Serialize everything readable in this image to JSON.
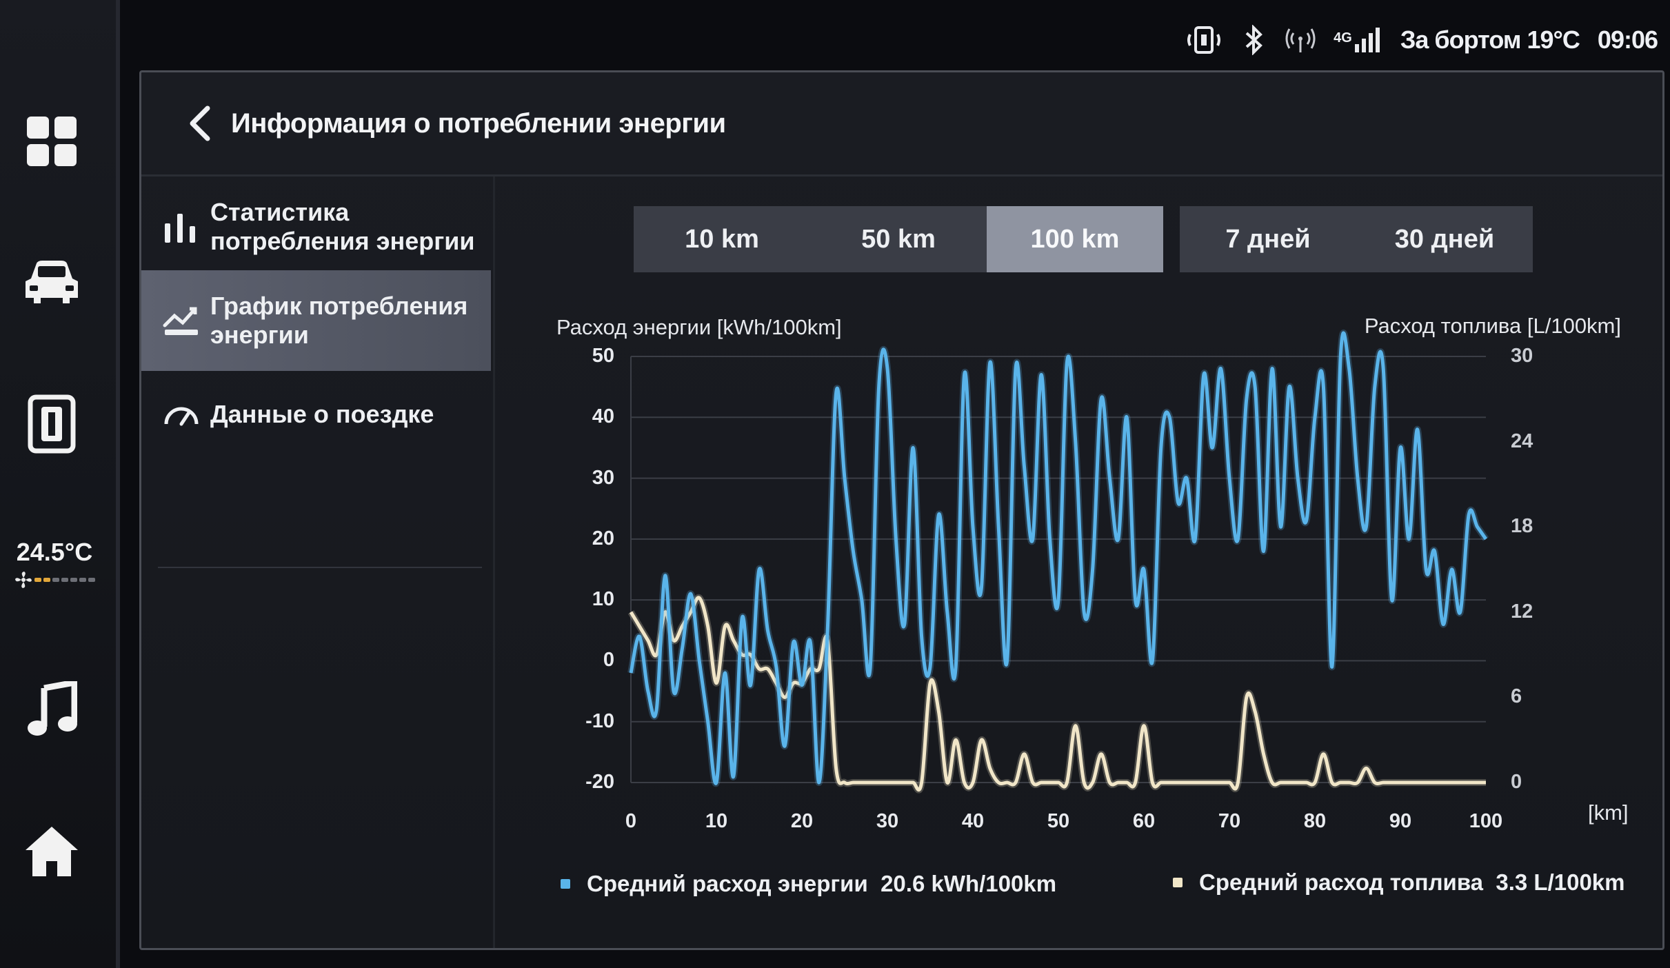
{
  "status": {
    "network": "4G",
    "outside_label": "За бортом",
    "outside_temp": "19°C",
    "time": "09:06"
  },
  "dock": {
    "cabin_temp": "24.5°C",
    "fan_level": 0.33
  },
  "header": {
    "title": "Информация о потреблении энергии"
  },
  "menu": {
    "items": [
      {
        "label": "Статистика потребления энергии",
        "active": false
      },
      {
        "label": "График потребления энергии",
        "active": true
      },
      {
        "label": "Данные о поездке",
        "active": false
      }
    ]
  },
  "tabs": {
    "distance": [
      "10 km",
      "50 km",
      "100 km"
    ],
    "time": [
      "7 дней",
      "30 дней"
    ],
    "selected": "100 km"
  },
  "chart": {
    "left_axis_title": "Расход энергии [kWh/100km]",
    "right_axis_title": "Расход топлива [L/100km]",
    "x_unit": "[km]",
    "legend_energy": "Средний расход энергии  20.6 kWh/100km",
    "legend_fuel": "Средний расход топлива  3.3 L/100km"
  },
  "colors": {
    "energy": "#5ab4ea",
    "fuel": "#f1e6c8",
    "accent_selected": "#8f94a1"
  },
  "chart_data": {
    "type": "line",
    "x_label": "[km]",
    "xlim": [
      0,
      100
    ],
    "x_ticks": [
      0,
      10,
      20,
      30,
      40,
      50,
      60,
      70,
      80,
      90,
      100
    ],
    "y_left_label": "Расход энергии [kWh/100km]",
    "ylim_left": [
      -20,
      50
    ],
    "y_left_ticks": [
      50,
      40,
      30,
      20,
      10,
      0,
      -10,
      -20
    ],
    "y_right_label": "Расход топлива [L/100km]",
    "ylim_right": [
      0,
      30
    ],
    "y_right_ticks": [
      30,
      24,
      18,
      12,
      6,
      0
    ],
    "grid": true,
    "legend_position": "bottom",
    "series": [
      {
        "name": "Средний расход энергии",
        "axis": "left",
        "points": [
          [
            0,
            -2
          ],
          [
            1,
            4
          ],
          [
            2,
            -5
          ],
          [
            3,
            -8
          ],
          [
            4,
            14
          ],
          [
            5,
            -5
          ],
          [
            6,
            2
          ],
          [
            7,
            11
          ],
          [
            8,
            0
          ],
          [
            9,
            -10
          ],
          [
            10,
            -20
          ],
          [
            11,
            -2
          ],
          [
            12,
            -19
          ],
          [
            13,
            7
          ],
          [
            14,
            -4
          ],
          [
            15,
            15
          ],
          [
            16,
            5
          ],
          [
            17,
            -1
          ],
          [
            18,
            -14
          ],
          [
            19,
            3
          ],
          [
            20,
            -4
          ],
          [
            21,
            3
          ],
          [
            22,
            -20
          ],
          [
            23,
            5
          ],
          [
            24,
            44
          ],
          [
            25,
            30
          ],
          [
            26,
            18
          ],
          [
            27,
            10
          ],
          [
            28,
            -1
          ],
          [
            29,
            45
          ],
          [
            30,
            48
          ],
          [
            31,
            20
          ],
          [
            32,
            6
          ],
          [
            33,
            35
          ],
          [
            34,
            4
          ],
          [
            35,
            -1
          ],
          [
            36,
            24
          ],
          [
            37,
            8
          ],
          [
            38,
            -1
          ],
          [
            39,
            47
          ],
          [
            40,
            22
          ],
          [
            41,
            12
          ],
          [
            42,
            49
          ],
          [
            43,
            22
          ],
          [
            44,
            0
          ],
          [
            45,
            48
          ],
          [
            46,
            32
          ],
          [
            47,
            20
          ],
          [
            48,
            47
          ],
          [
            49,
            20
          ],
          [
            50,
            10
          ],
          [
            51,
            49
          ],
          [
            52,
            36
          ],
          [
            53,
            8
          ],
          [
            54,
            15
          ],
          [
            55,
            43
          ],
          [
            56,
            30
          ],
          [
            57,
            20
          ],
          [
            58,
            40
          ],
          [
            59,
            10
          ],
          [
            60,
            15
          ],
          [
            61,
            0
          ],
          [
            62,
            35
          ],
          [
            63,
            40
          ],
          [
            64,
            26
          ],
          [
            65,
            30
          ],
          [
            66,
            20
          ],
          [
            67,
            47
          ],
          [
            68,
            35
          ],
          [
            69,
            48
          ],
          [
            70,
            30
          ],
          [
            71,
            20
          ],
          [
            72,
            43
          ],
          [
            73,
            45
          ],
          [
            74,
            18
          ],
          [
            75,
            48
          ],
          [
            76,
            22
          ],
          [
            77,
            45
          ],
          [
            78,
            30
          ],
          [
            79,
            23
          ],
          [
            80,
            40
          ],
          [
            81,
            45
          ],
          [
            82,
            -1
          ],
          [
            83,
            50
          ],
          [
            84,
            48
          ],
          [
            85,
            30
          ],
          [
            86,
            22
          ],
          [
            87,
            45
          ],
          [
            88,
            48
          ],
          [
            89,
            10
          ],
          [
            90,
            35
          ],
          [
            91,
            20
          ],
          [
            92,
            38
          ],
          [
            93,
            15
          ],
          [
            94,
            18
          ],
          [
            95,
            6
          ],
          [
            96,
            15
          ],
          [
            97,
            8
          ],
          [
            98,
            24
          ],
          [
            99,
            22
          ],
          [
            100,
            20
          ]
        ]
      },
      {
        "name": "Средний расход топлива",
        "axis": "right",
        "points": [
          [
            0,
            12
          ],
          [
            1,
            11
          ],
          [
            2,
            10
          ],
          [
            3,
            9
          ],
          [
            4,
            12
          ],
          [
            5,
            10
          ],
          [
            6,
            11
          ],
          [
            7,
            12
          ],
          [
            8,
            13
          ],
          [
            9,
            11
          ],
          [
            10,
            7
          ],
          [
            11,
            11
          ],
          [
            12,
            10
          ],
          [
            13,
            9
          ],
          [
            14,
            9
          ],
          [
            15,
            8
          ],
          [
            16,
            8
          ],
          [
            17,
            7
          ],
          [
            18,
            6
          ],
          [
            19,
            7
          ],
          [
            20,
            7
          ],
          [
            21,
            8
          ],
          [
            22,
            8
          ],
          [
            23,
            10
          ],
          [
            24,
            1
          ],
          [
            25,
            0
          ],
          [
            26,
            0
          ],
          [
            27,
            0
          ],
          [
            28,
            0
          ],
          [
            29,
            0
          ],
          [
            30,
            0
          ],
          [
            31,
            0
          ],
          [
            32,
            0
          ],
          [
            33,
            0
          ],
          [
            34,
            0
          ],
          [
            35,
            7
          ],
          [
            36,
            5
          ],
          [
            37,
            0
          ],
          [
            38,
            3
          ],
          [
            39,
            0
          ],
          [
            40,
            0
          ],
          [
            41,
            3
          ],
          [
            42,
            1
          ],
          [
            43,
            0
          ],
          [
            44,
            0
          ],
          [
            45,
            0
          ],
          [
            46,
            2
          ],
          [
            47,
            0
          ],
          [
            48,
            0
          ],
          [
            49,
            0
          ],
          [
            50,
            0
          ],
          [
            51,
            0
          ],
          [
            52,
            4
          ],
          [
            53,
            0
          ],
          [
            54,
            0
          ],
          [
            55,
            2
          ],
          [
            56,
            0
          ],
          [
            57,
            0
          ],
          [
            58,
            0
          ],
          [
            59,
            0
          ],
          [
            60,
            4
          ],
          [
            61,
            0
          ],
          [
            62,
            0
          ],
          [
            63,
            0
          ],
          [
            64,
            0
          ],
          [
            65,
            0
          ],
          [
            66,
            0
          ],
          [
            67,
            0
          ],
          [
            68,
            0
          ],
          [
            69,
            0
          ],
          [
            70,
            0
          ],
          [
            71,
            0
          ],
          [
            72,
            6
          ],
          [
            73,
            5
          ],
          [
            74,
            2
          ],
          [
            75,
            0
          ],
          [
            76,
            0
          ],
          [
            77,
            0
          ],
          [
            78,
            0
          ],
          [
            79,
            0
          ],
          [
            80,
            0
          ],
          [
            81,
            2
          ],
          [
            82,
            0
          ],
          [
            83,
            0
          ],
          [
            84,
            0
          ],
          [
            85,
            0
          ],
          [
            86,
            1
          ],
          [
            87,
            0
          ],
          [
            88,
            0
          ],
          [
            89,
            0
          ],
          [
            90,
            0
          ],
          [
            91,
            0
          ],
          [
            92,
            0
          ],
          [
            93,
            0
          ],
          [
            94,
            0
          ],
          [
            95,
            0
          ],
          [
            96,
            0
          ],
          [
            97,
            0
          ],
          [
            98,
            0
          ],
          [
            99,
            0
          ],
          [
            100,
            0
          ]
        ]
      }
    ]
  }
}
